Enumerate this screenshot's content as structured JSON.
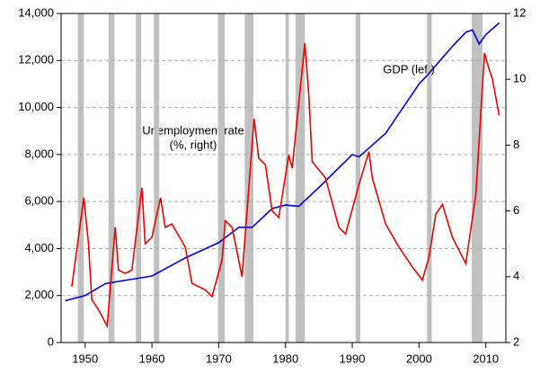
{
  "chart_data": {
    "type": "line",
    "x_ticks_note": null,
    "xlim": [
      1946.4,
      2013
    ],
    "xticks": [
      1950,
      1960,
      1970,
      1980,
      1990,
      2000,
      2010
    ],
    "ylim": [
      0,
      14000
    ],
    "yticks": [
      0,
      {
        "value": 2000,
        "label": "2,000"
      },
      {
        "value": 4000,
        "label": "4,000"
      },
      {
        "value": 6000,
        "label": "6,000"
      },
      {
        "value": 8000,
        "label": "8,000"
      },
      {
        "value": 10000,
        "label": "10,000"
      },
      {
        "value": 12000,
        "label": "12,000"
      },
      {
        "value": 14000,
        "label": "14,000"
      }
    ],
    "y2lim": [
      2,
      12
    ],
    "y2ticks": [
      2,
      4,
      6,
      8,
      10,
      12
    ],
    "grid": true,
    "recession_color": "#c0c0c0",
    "recessions": [
      [
        1948.9,
        1949.8
      ],
      [
        1953.5,
        1954.4
      ],
      [
        1957.6,
        1958.4
      ],
      [
        1960.3,
        1961.1
      ],
      [
        1969.9,
        1970.9
      ],
      [
        1973.9,
        1975.2
      ],
      [
        1980.0,
        1980.5
      ],
      [
        1981.5,
        1982.9
      ],
      [
        1990.5,
        1991.2
      ],
      [
        2001.2,
        2001.9
      ],
      [
        2007.9,
        2009.5
      ]
    ],
    "series": [
      {
        "name": "GDP (left)",
        "color": "#0000e0",
        "x": [
          1947,
          1950,
          1953,
          1955,
          1960,
          1965,
          1970,
          1973,
          1975,
          1978,
          1980,
          1982,
          1985,
          1990,
          1991,
          1995,
          2000,
          2001,
          2005,
          2007,
          2008,
          2009,
          2010,
          2012
        ],
        "values": [
          1780,
          2000,
          2500,
          2600,
          2830,
          3600,
          4250,
          4900,
          4900,
          5700,
          5850,
          5800,
          6600,
          8000,
          7900,
          8900,
          11000,
          11300,
          12600,
          13200,
          13300,
          12700,
          13100,
          13600
        ]
      },
      {
        "name": "Unemployment rate",
        "note": "(%, right)",
        "color": "#ee0000",
        "axis": "y2",
        "x": [
          1948,
          1949.8,
          1950.5,
          1951,
          1952,
          1953.3,
          1954.5,
          1955,
          1956,
          1957,
          1958.5,
          1959,
          1960,
          1961.3,
          1962,
          1963,
          1965,
          1966,
          1968,
          1969,
          1970.5,
          1971,
          1972,
          1973.5,
          1975.3,
          1976,
          1977,
          1978,
          1979,
          1980.5,
          1981,
          1982.9,
          1983.5,
          1984,
          1986,
          1988,
          1989,
          1991,
          1992.5,
          1993,
          1995,
          1997,
          1999,
          2000.5,
          2001.5,
          2002.5,
          2003.5,
          2005,
          2007,
          2008.5,
          2009.8,
          2010.5,
          2011,
          2012
        ],
        "values": [
          3.7,
          6.4,
          5.0,
          3.3,
          3.0,
          2.5,
          5.5,
          4.2,
          4.1,
          4.2,
          6.7,
          5.0,
          5.2,
          6.4,
          5.5,
          5.6,
          4.9,
          3.8,
          3.6,
          3.4,
          4.5,
          5.7,
          5.5,
          4.0,
          8.8,
          7.6,
          7.4,
          6.0,
          5.8,
          7.7,
          7.3,
          11.1,
          9.5,
          7.5,
          7.0,
          5.5,
          5.3,
          6.8,
          7.8,
          7.0,
          5.6,
          4.9,
          4.3,
          3.9,
          4.6,
          5.9,
          6.2,
          5.2,
          4.4,
          6.5,
          10.8,
          10.3,
          10.0,
          8.9
        ]
      }
    ]
  }
}
